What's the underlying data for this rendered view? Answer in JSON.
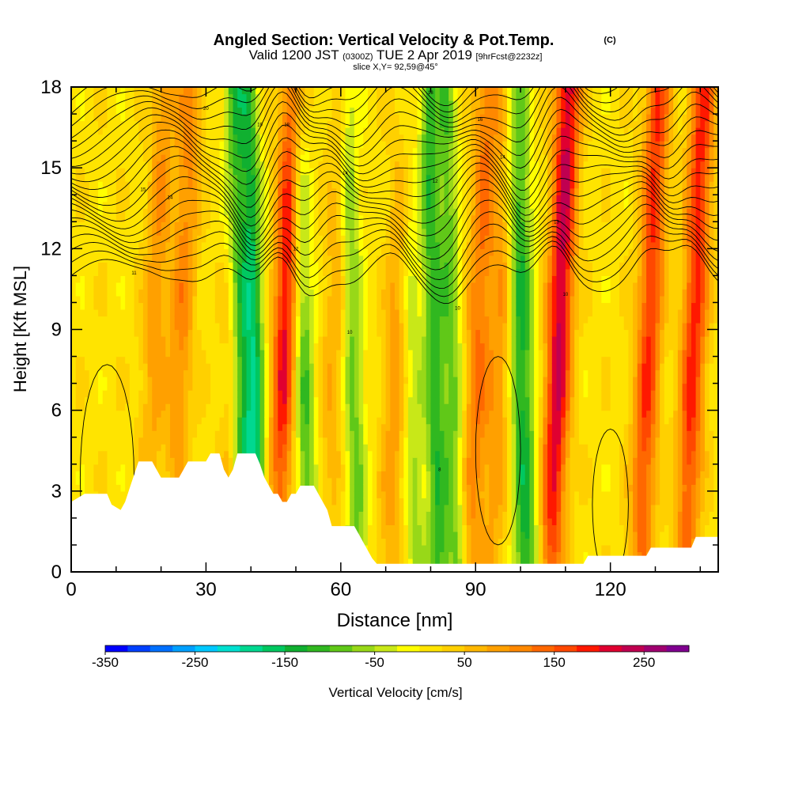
{
  "header": {
    "title_main": "Angled Section: Vertical Velocity & Pot.Temp.",
    "title_unit": "(C)",
    "valid_prefix": "Valid 1200 JST",
    "valid_utc": "(0300Z)",
    "valid_date": "TUE 2 Apr 2019",
    "forecast": "[9hrFcst@2232z]",
    "slice": "slice X,Y= 92,59@45°"
  },
  "chart_data": {
    "type": "heatmap",
    "xlabel": "Distance [nm]",
    "ylabel": "Height [Kft MSL]",
    "xlim": [
      0,
      144
    ],
    "ylim": [
      0,
      18
    ],
    "x_ticks": [
      0,
      30,
      60,
      90,
      120
    ],
    "y_ticks": [
      0,
      3,
      6,
      9,
      12,
      15,
      18
    ],
    "colorbar": {
      "label": "Vertical Velocity [cm/s]",
      "range": [
        -350,
        300
      ],
      "step": 25,
      "tick_labels": [
        -350,
        -250,
        -150,
        -50,
        50,
        150,
        250
      ],
      "colors": [
        "#0000ff",
        "#0040ff",
        "#0070ff",
        "#00a0ff",
        "#00c8ff",
        "#00e0d0",
        "#00d890",
        "#00c860",
        "#10b030",
        "#30b820",
        "#60c818",
        "#98d818",
        "#c8e818",
        "#ffff00",
        "#ffe400",
        "#ffd000",
        "#ffb800",
        "#ffa000",
        "#ff8800",
        "#ff6800",
        "#ff4800",
        "#ff1800",
        "#e00030",
        "#c00050",
        "#a00070",
        "#800090"
      ]
    },
    "updrafts": [
      {
        "x": 18,
        "amp": 80
      },
      {
        "x": 24,
        "amp": 95
      },
      {
        "x": 36,
        "amp": 60
      },
      {
        "x": 47,
        "amp": 195
      },
      {
        "x": 58,
        "amp": 60
      },
      {
        "x": 72,
        "amp": 80
      },
      {
        "x": 90,
        "amp": 110
      },
      {
        "x": 95,
        "amp": 75
      },
      {
        "x": 108,
        "amp": 215
      },
      {
        "x": 128,
        "amp": 160
      },
      {
        "x": 138,
        "amp": 170
      }
    ],
    "downdrafts": [
      {
        "x": 38,
        "amp": -150
      },
      {
        "x": 41,
        "amp": -170
      },
      {
        "x": 52,
        "amp": -120
      },
      {
        "x": 63,
        "amp": -100
      },
      {
        "x": 76,
        "amp": -70
      },
      {
        "x": 81,
        "amp": -130
      },
      {
        "x": 85,
        "amp": -100
      },
      {
        "x": 100,
        "amp": -120
      },
      {
        "x": 102,
        "amp": -60
      }
    ],
    "terrain": [
      [
        0,
        2.6
      ],
      [
        3,
        2.9
      ],
      [
        8,
        2.9
      ],
      [
        9,
        2.5
      ],
      [
        11,
        2.3
      ],
      [
        12,
        2.6
      ],
      [
        13,
        3.1
      ],
      [
        14,
        3.6
      ],
      [
        15,
        4.1
      ],
      [
        18,
        4.1
      ],
      [
        19,
        3.8
      ],
      [
        20,
        3.5
      ],
      [
        24,
        3.5
      ],
      [
        25,
        3.8
      ],
      [
        26,
        4.1
      ],
      [
        30,
        4.1
      ],
      [
        31,
        4.4
      ],
      [
        33,
        4.4
      ],
      [
        34,
        3.8
      ],
      [
        35,
        3.5
      ],
      [
        36,
        3.8
      ],
      [
        37,
        4.4
      ],
      [
        41,
        4.4
      ],
      [
        42,
        4.0
      ],
      [
        43,
        3.5
      ],
      [
        44,
        3.2
      ],
      [
        45,
        2.9
      ],
      [
        46,
        2.9
      ],
      [
        47,
        2.6
      ],
      [
        48,
        2.6
      ],
      [
        49,
        2.9
      ],
      [
        50,
        2.9
      ],
      [
        51,
        3.2
      ],
      [
        54,
        3.2
      ],
      [
        55,
        2.9
      ],
      [
        56,
        2.6
      ],
      [
        57,
        2.3
      ],
      [
        58,
        1.7
      ],
      [
        63,
        1.7
      ],
      [
        64,
        1.4
      ],
      [
        65,
        1.1
      ],
      [
        66,
        0.8
      ],
      [
        67,
        0.5
      ],
      [
        68,
        0.3
      ],
      [
        114,
        0.3
      ],
      [
        115,
        0.6
      ],
      [
        128,
        0.6
      ],
      [
        129,
        0.9
      ],
      [
        138,
        0.9
      ],
      [
        139,
        1.3
      ],
      [
        144,
        1.3
      ]
    ],
    "isentropes": {
      "count": 22,
      "labels": [
        {
          "x": 30,
          "y": 17.2,
          "text": "20"
        },
        {
          "x": 42,
          "y": 16.6,
          "text": "19"
        },
        {
          "x": 48,
          "y": 16.6,
          "text": "18"
        },
        {
          "x": 80,
          "y": 17.8,
          "text": "18"
        },
        {
          "x": 91,
          "y": 16.8,
          "text": "16"
        },
        {
          "x": 96,
          "y": 15.4,
          "text": "14"
        },
        {
          "x": 61,
          "y": 14.8,
          "text": "14"
        },
        {
          "x": 81,
          "y": 14.5,
          "text": "12"
        },
        {
          "x": 16,
          "y": 14.2,
          "text": "15"
        },
        {
          "x": 22,
          "y": 13.9,
          "text": "14"
        },
        {
          "x": 108,
          "y": 13.0,
          "text": "13"
        },
        {
          "x": 50,
          "y": 12.0,
          "text": "12"
        },
        {
          "x": 14,
          "y": 11.1,
          "text": "11"
        },
        {
          "x": 110,
          "y": 10.3,
          "text": "10"
        },
        {
          "x": 86,
          "y": 9.8,
          "text": "10"
        },
        {
          "x": 62,
          "y": 8.9,
          "text": "10"
        },
        {
          "x": 82,
          "y": 3.8,
          "text": "8"
        }
      ]
    }
  }
}
